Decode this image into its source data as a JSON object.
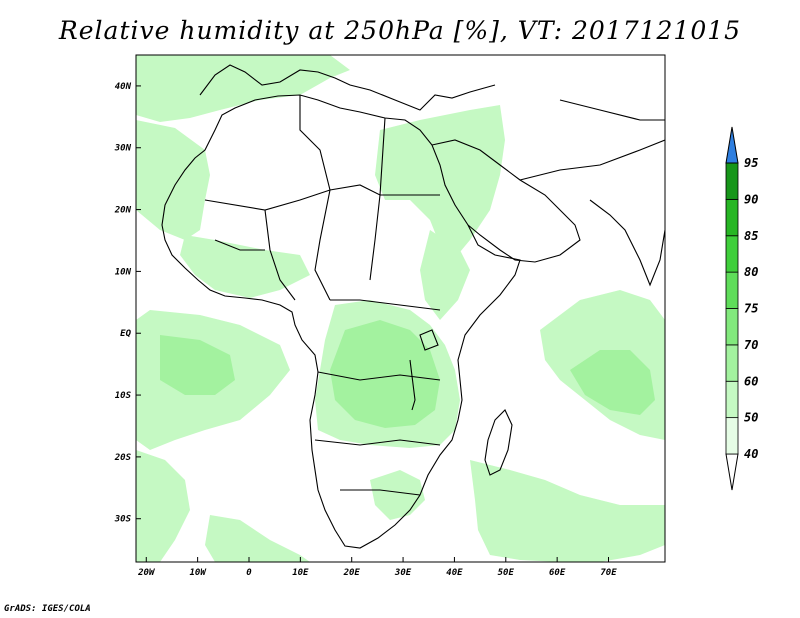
{
  "title": "Relative humidity at 250hPa [%], VT: 2017121015",
  "credit": "GrADS: IGES/COLA",
  "map": {
    "lon_range": [
      -22,
      81
    ],
    "lat_range": [
      -37,
      45
    ],
    "lat_ticks": [
      {
        "value": 40,
        "label": "40N"
      },
      {
        "value": 30,
        "label": "30N"
      },
      {
        "value": 20,
        "label": "20N"
      },
      {
        "value": 10,
        "label": "10N"
      },
      {
        "value": 0,
        "label": "EQ"
      },
      {
        "value": -10,
        "label": "10S"
      },
      {
        "value": -20,
        "label": "20S"
      },
      {
        "value": -30,
        "label": "30S"
      }
    ],
    "lon_ticks": [
      {
        "value": -20,
        "label": "20W"
      },
      {
        "value": -10,
        "label": "10W"
      },
      {
        "value": 0,
        "label": "0"
      },
      {
        "value": 10,
        "label": "10E"
      },
      {
        "value": 20,
        "label": "20E"
      },
      {
        "value": 30,
        "label": "30E"
      },
      {
        "value": 40,
        "label": "40E"
      },
      {
        "value": 50,
        "label": "50E"
      },
      {
        "value": 60,
        "label": "60E"
      },
      {
        "value": 70,
        "label": "70E"
      }
    ]
  },
  "colorbar": {
    "levels": [
      "40",
      "50",
      "60",
      "70",
      "75",
      "80",
      "85",
      "90",
      "95"
    ],
    "colors": [
      "#ffffff",
      "#e6fde6",
      "#c5f9c3",
      "#a3f29f",
      "#82e97d",
      "#5fdd5a",
      "#3fcf3b",
      "#27b624",
      "#17961a",
      "#2f7fe0"
    ],
    "under_color": "#ffffff",
    "over_color": "#2f7fe0"
  },
  "colors": {
    "humid_light": "#c5f9c3",
    "humid_mid": "#a3f29f",
    "coast": "#000000"
  }
}
